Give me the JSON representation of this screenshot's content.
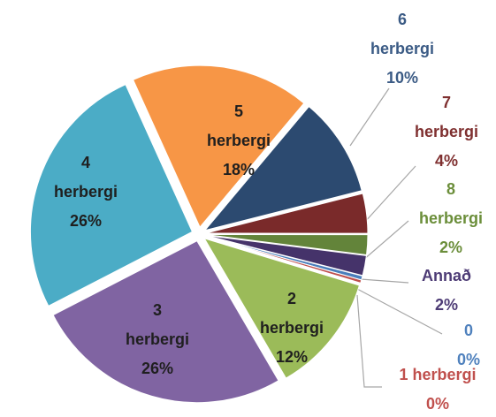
{
  "chart_data": {
    "type": "pie",
    "categories": [
      "6 herbergi",
      "7 herbergi",
      "8 herbergi",
      "Annað",
      "0",
      "1 herbergi",
      "2 herbergi",
      "3 herbergi",
      "4 herbergi",
      "5 herbergi"
    ],
    "values": [
      10,
      4,
      2,
      2,
      0.4,
      0.3,
      12,
      26,
      26,
      18
    ],
    "value_labels": [
      "10%",
      "4%",
      "2%",
      "2%",
      "0%",
      "0%",
      "12%",
      "26%",
      "26%",
      "18%"
    ],
    "colors": [
      "#2c4a70",
      "#7a2a2a",
      "#63843a",
      "#45336a",
      "#4a7ebb",
      "#c0504d",
      "#9bbb59",
      "#8064a2",
      "#4bacc6",
      "#f79646"
    ],
    "label_colors": [
      "#3b5b85",
      "#7f3030",
      "#6b8e3a",
      "#4d3b75",
      "#4f81bd",
      "#c0504d",
      "#1f1f1f",
      "#1f1f1f",
      "#1f1f1f",
      "#1f1f1f"
    ]
  }
}
